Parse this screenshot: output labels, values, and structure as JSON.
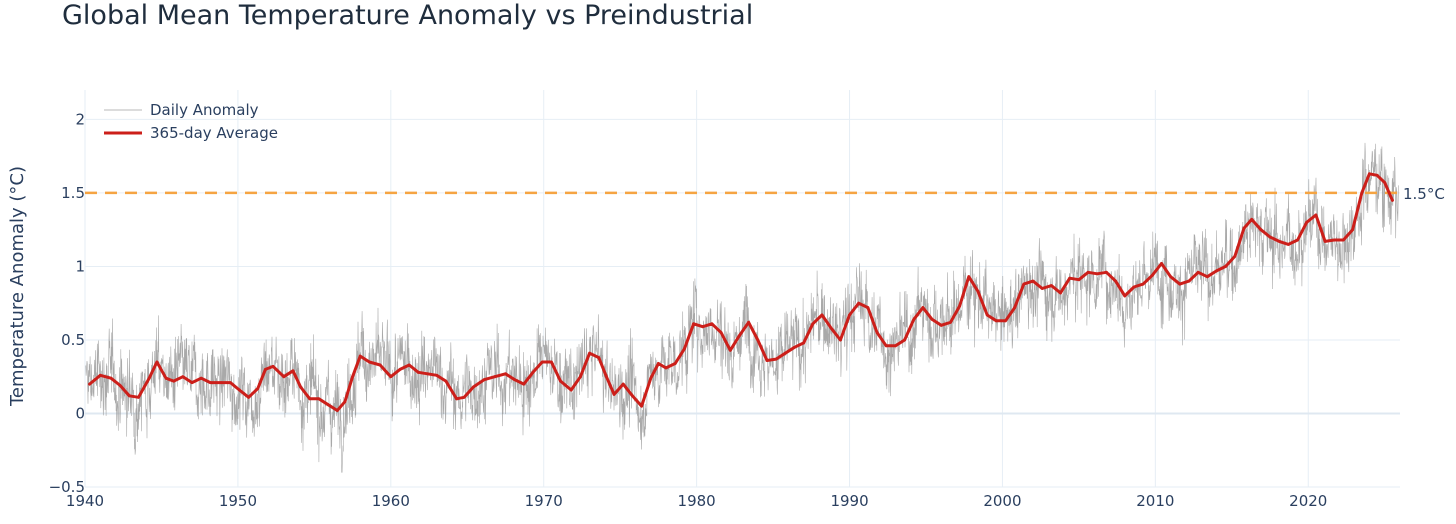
{
  "chart_data": {
    "type": "line",
    "title": "Global Mean Temperature Anomaly vs Preindustrial",
    "xlabel": "",
    "ylabel": "Temperature Anomaly (°C)",
    "xlim": [
      1940,
      2026
    ],
    "ylim": [
      -0.5,
      2.2
    ],
    "x_ticks": [
      1940,
      1950,
      1960,
      1970,
      1980,
      1990,
      2000,
      2010,
      2020
    ],
    "x_tick_labels": [
      "1940",
      "1950",
      "1960",
      "1970",
      "1980",
      "1990",
      "2000",
      "2010",
      "2020"
    ],
    "y_ticks": [
      -0.5,
      0,
      0.5,
      1,
      1.5,
      2
    ],
    "y_tick_labels": [
      "−0.5",
      "0",
      "0.5",
      "1",
      "1.5",
      "2"
    ],
    "grid": true,
    "legend_position": "top-left",
    "series": [
      {
        "name": "Daily Anomaly",
        "color": "#a0a0a0",
        "style": "thin noisy line, daily values scatter roughly ±0.3 °C around the smoothed average"
      },
      {
        "name": "365-day Average",
        "color": "#cc1f1a",
        "x": [
          1940.3,
          1941.0,
          1941.7,
          1942.3,
          1942.9,
          1943.5,
          1944.2,
          1944.7,
          1945.3,
          1945.8,
          1946.4,
          1947.0,
          1947.6,
          1948.2,
          1948.9,
          1949.5,
          1950.1,
          1950.7,
          1951.3,
          1951.8,
          1952.3,
          1953.0,
          1953.6,
          1954.1,
          1954.7,
          1955.3,
          1955.9,
          1956.5,
          1957.0,
          1957.5,
          1958.0,
          1958.6,
          1959.3,
          1960.0,
          1960.6,
          1961.2,
          1961.8,
          1962.4,
          1963.0,
          1963.6,
          1964.3,
          1964.8,
          1965.4,
          1966.1,
          1966.8,
          1967.5,
          1968.1,
          1968.7,
          1969.3,
          1969.9,
          1970.5,
          1971.1,
          1971.8,
          1972.4,
          1973.0,
          1973.6,
          1974.1,
          1974.6,
          1975.2,
          1975.8,
          1976.4,
          1977.0,
          1977.5,
          1978.0,
          1978.6,
          1979.2,
          1979.8,
          1980.4,
          1981.0,
          1981.6,
          1982.2,
          1982.8,
          1983.4,
          1984.0,
          1984.6,
          1985.2,
          1985.8,
          1986.4,
          1987.0,
          1987.6,
          1988.2,
          1988.8,
          1989.4,
          1990.0,
          1990.6,
          1991.2,
          1991.8,
          1992.4,
          1993.0,
          1993.6,
          1994.2,
          1994.8,
          1995.4,
          1996.0,
          1996.6,
          1997.2,
          1997.8,
          1998.4,
          1999.0,
          1999.6,
          2000.2,
          2000.8,
          2001.4,
          2002.0,
          2002.6,
          2003.2,
          2003.8,
          2004.4,
          2005.0,
          2005.6,
          2006.2,
          2006.8,
          2007.4,
          2008.0,
          2008.6,
          2009.2,
          2009.8,
          2010.4,
          2011.0,
          2011.6,
          2012.2,
          2012.8,
          2013.4,
          2014.0,
          2014.6,
          2015.2,
          2015.8,
          2016.3,
          2016.9,
          2017.5,
          2018.1,
          2018.7,
          2019.3,
          2019.9,
          2020.5,
          2021.1,
          2021.7,
          2022.3,
          2022.9,
          2023.5,
          2024.0,
          2024.5,
          2025.0,
          2025.5
        ],
        "values": [
          0.2,
          0.26,
          0.24,
          0.19,
          0.12,
          0.11,
          0.24,
          0.35,
          0.24,
          0.22,
          0.25,
          0.21,
          0.24,
          0.21,
          0.21,
          0.21,
          0.16,
          0.11,
          0.17,
          0.3,
          0.32,
          0.25,
          0.29,
          0.18,
          0.1,
          0.1,
          0.06,
          0.02,
          0.08,
          0.25,
          0.39,
          0.35,
          0.33,
          0.25,
          0.3,
          0.33,
          0.28,
          0.27,
          0.26,
          0.22,
          0.1,
          0.11,
          0.18,
          0.23,
          0.25,
          0.27,
          0.23,
          0.2,
          0.28,
          0.35,
          0.35,
          0.22,
          0.16,
          0.25,
          0.41,
          0.38,
          0.25,
          0.13,
          0.2,
          0.12,
          0.05,
          0.24,
          0.34,
          0.31,
          0.34,
          0.44,
          0.61,
          0.59,
          0.61,
          0.55,
          0.43,
          0.53,
          0.62,
          0.5,
          0.36,
          0.37,
          0.41,
          0.45,
          0.48,
          0.61,
          0.67,
          0.58,
          0.5,
          0.67,
          0.75,
          0.72,
          0.55,
          0.46,
          0.46,
          0.5,
          0.64,
          0.72,
          0.64,
          0.6,
          0.62,
          0.73,
          0.93,
          0.83,
          0.67,
          0.63,
          0.63,
          0.72,
          0.88,
          0.9,
          0.85,
          0.87,
          0.82,
          0.92,
          0.91,
          0.96,
          0.95,
          0.96,
          0.9,
          0.8,
          0.86,
          0.88,
          0.94,
          1.02,
          0.93,
          0.88,
          0.9,
          0.96,
          0.93,
          0.97,
          1.0,
          1.07,
          1.26,
          1.32,
          1.25,
          1.2,
          1.17,
          1.15,
          1.18,
          1.3,
          1.35,
          1.17,
          1.18,
          1.18,
          1.25,
          1.5,
          1.63,
          1.62,
          1.57,
          1.45
        ]
      }
    ],
    "reference_line": {
      "y": 1.5,
      "label": "1.5°C",
      "color": "#f5a442",
      "style": "dashed"
    }
  }
}
